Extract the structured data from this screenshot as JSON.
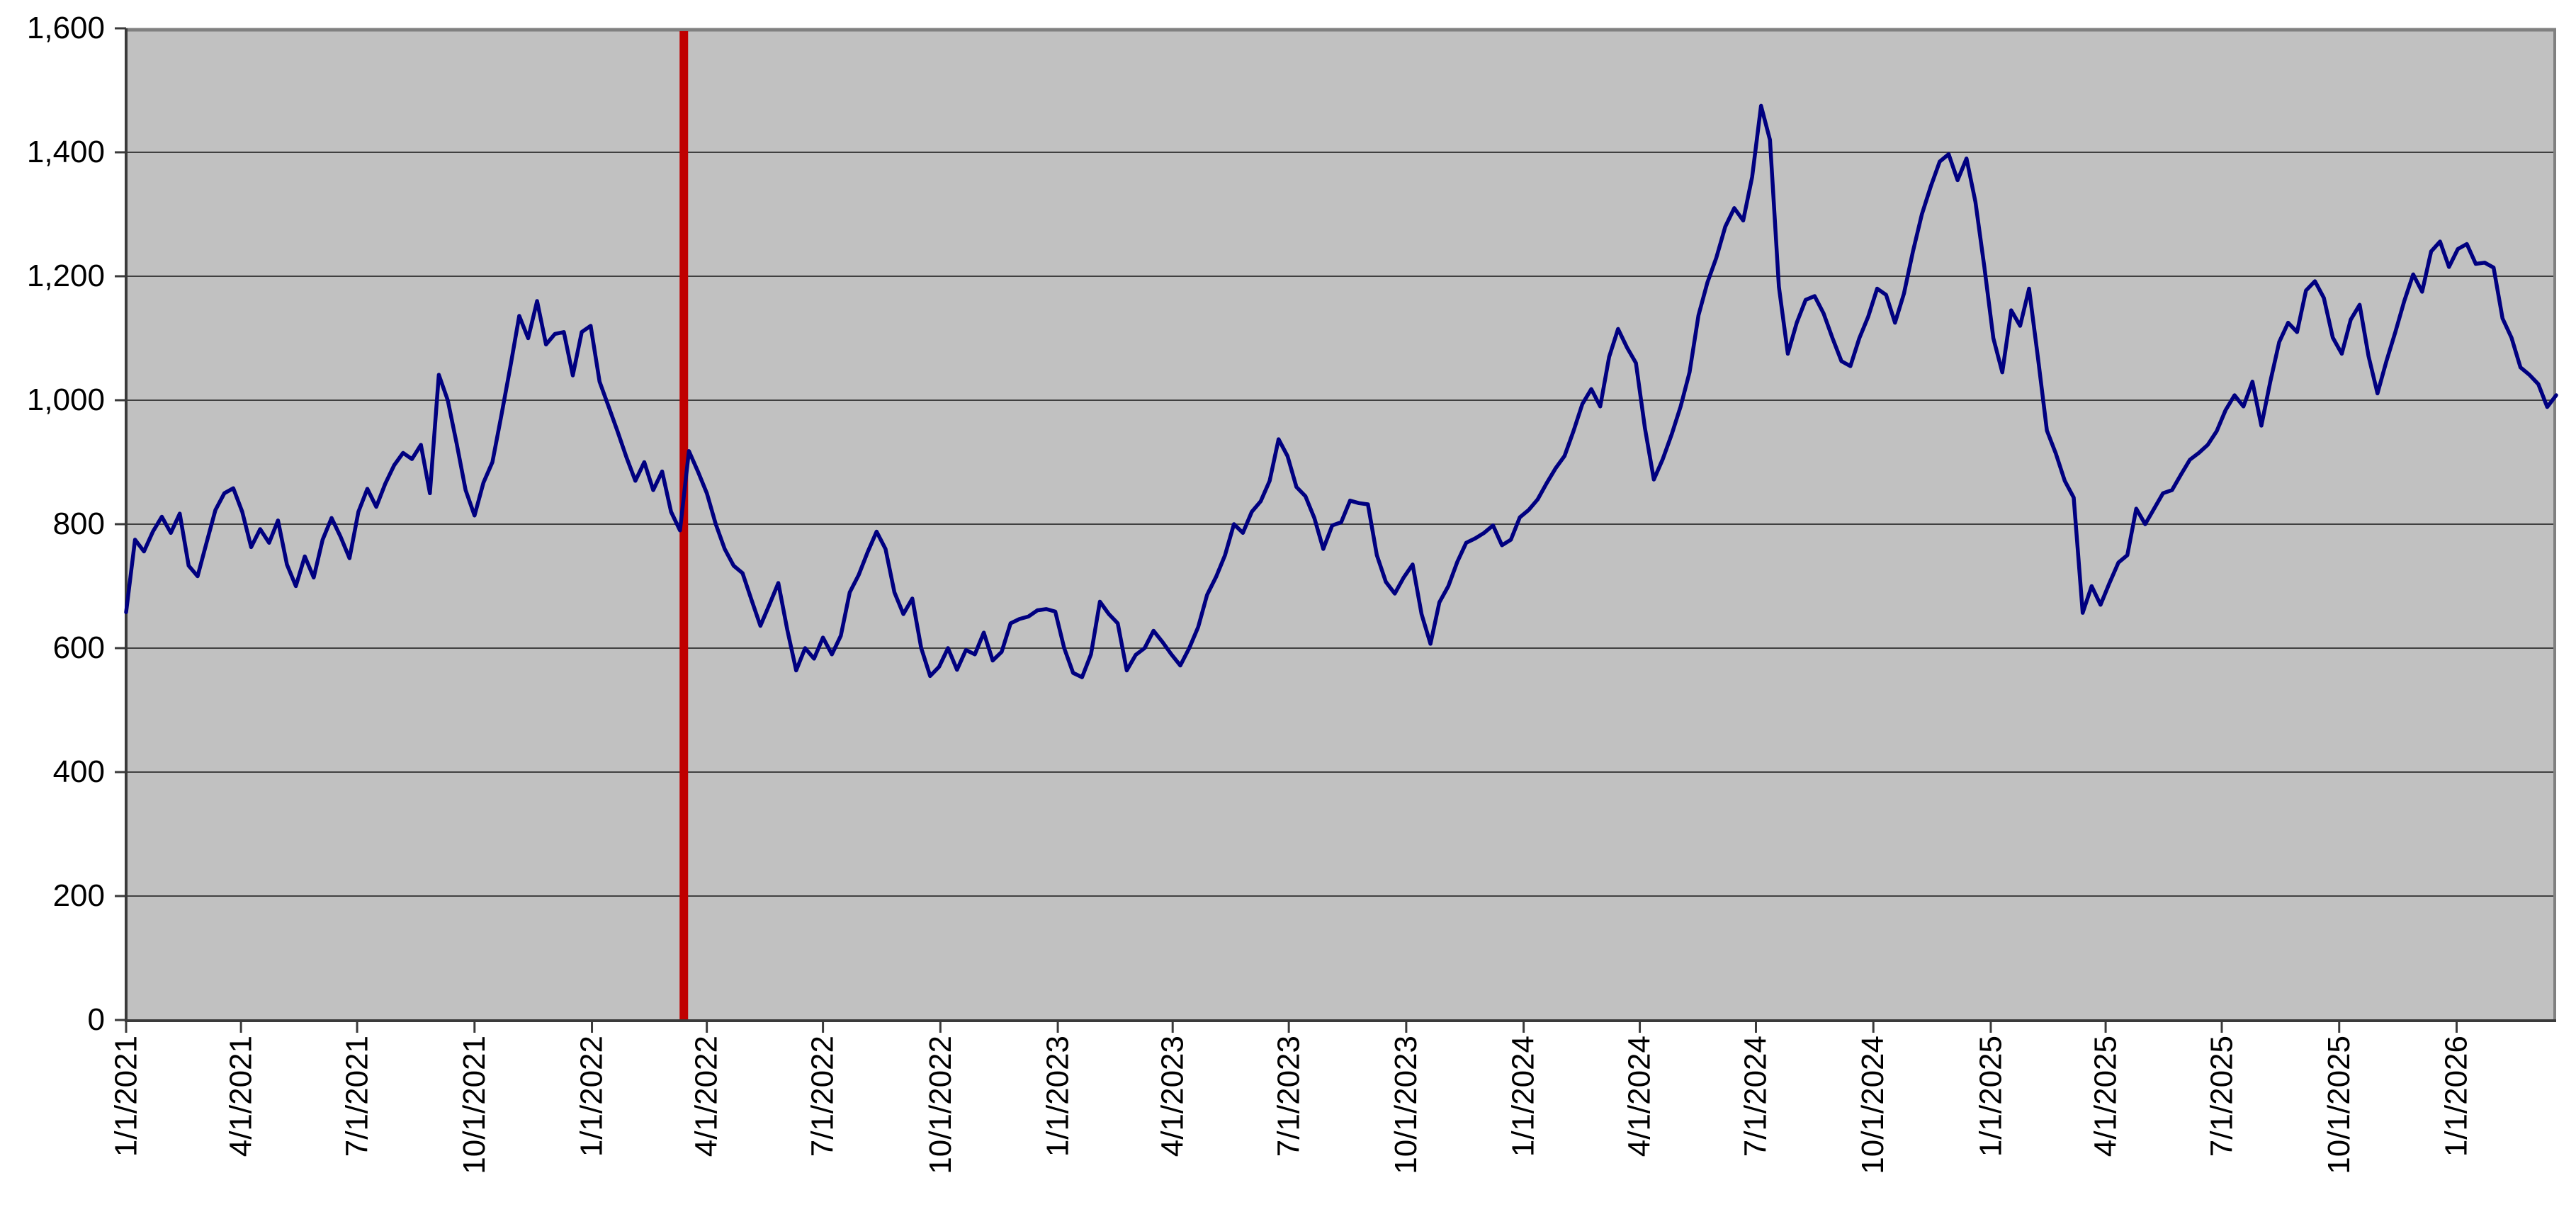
{
  "chart_data": {
    "type": "line",
    "title": "",
    "legend": "none",
    "grid": true,
    "style": {
      "plot_bg": "#c1c1c1",
      "grid_color": "#404040",
      "border_color": "#808080",
      "axis_color": "#3a3a3a",
      "tick_color": "#3a3a3a",
      "page_bg": "#ffffff"
    },
    "x_axis": {
      "unit": "date",
      "min_day": 0,
      "max_day": 1904,
      "tick_days": [
        0,
        90,
        181,
        273,
        365,
        455,
        546,
        638,
        730,
        820,
        911,
        1003,
        1095,
        1186,
        1277,
        1369,
        1461,
        1551,
        1642,
        1734,
        1826
      ],
      "tick_labels": [
        "1/1/2021",
        "4/1/2021",
        "7/1/2021",
        "10/1/2021",
        "1/1/2022",
        "4/1/2022",
        "7/1/2022",
        "10/1/2022",
        "1/1/2023",
        "4/1/2023",
        "7/1/2023",
        "10/1/2023",
        "1/1/2024",
        "4/1/2024",
        "7/1/2024",
        "10/1/2024",
        "1/1/2025",
        "4/1/2025",
        "7/1/2025",
        "10/1/2025",
        "1/1/2026"
      ]
    },
    "y_axis": {
      "min": 0,
      "max": 1600,
      "tick_step": 200,
      "tick_labels": [
        "0",
        "200",
        "400",
        "600",
        "800",
        "1,000",
        "1,200",
        "1,400",
        "1,600"
      ]
    },
    "annotations": [
      {
        "type": "vline",
        "name": "event-marker",
        "day": 437,
        "color": "#c00000",
        "width": 12
      }
    ],
    "series": [
      {
        "name": "price",
        "color": "#000080",
        "line_width": 5.5,
        "start_day": 0,
        "step_days": 7,
        "values": [
          658,
          775,
          756,
          788,
          812,
          786,
          817,
          733,
          716,
          770,
          823,
          850,
          858,
          820,
          763,
          792,
          770,
          806,
          735,
          700,
          748,
          714,
          775,
          810,
          780,
          745,
          820,
          857,
          828,
          865,
          895,
          915,
          905,
          928,
          850,
          1041,
          1000,
          930,
          855,
          814,
          867,
          900,
          975,
          1053,
          1136,
          1100,
          1160,
          1090,
          1107,
          1110,
          1040,
          1110,
          1120,
          1030,
          990,
          950,
          908,
          870,
          900,
          855,
          885,
          820,
          790,
          918,
          885,
          850,
          800,
          760,
          733,
          721,
          678,
          636,
          670,
          705,
          630,
          564,
          600,
          583,
          617,
          590,
          620,
          690,
          718,
          755,
          788,
          760,
          690,
          655,
          680,
          600,
          555,
          570,
          600,
          565,
          597,
          590,
          625,
          580,
          594,
          640,
          647,
          651,
          661,
          663,
          659,
          600,
          560,
          553,
          590,
          675,
          655,
          640,
          564,
          589,
          600,
          628,
          610,
          590,
          572,
          600,
          634,
          686,
          715,
          750,
          800,
          786,
          820,
          837,
          870,
          937,
          910,
          860,
          845,
          810,
          760,
          798,
          803,
          838,
          834,
          832,
          750,
          707,
          688,
          714,
          735,
          655,
          607,
          674,
          700,
          739,
          770,
          777,
          786,
          798,
          766,
          775,
          811,
          823,
          840,
          866,
          890,
          910,
          950,
          994,
          1018,
          990,
          1070,
          1115,
          1085,
          1060,
          955,
          872,
          905,
          945,
          990,
          1045,
          1137,
          1190,
          1230,
          1280,
          1310,
          1290,
          1360,
          1475,
          1420,
          1183,
          1075,
          1125,
          1162,
          1168,
          1140,
          1100,
          1063,
          1055,
          1100,
          1135,
          1180,
          1170,
          1125,
          1172,
          1240,
          1300,
          1345,
          1385,
          1397,
          1355,
          1390,
          1320,
          1215,
          1100,
          1045,
          1145,
          1120,
          1180,
          1068,
          951,
          914,
          870,
          843,
          657,
          700,
          670,
          705,
          738,
          750,
          825,
          800,
          825,
          850,
          855,
          880,
          904,
          915,
          928,
          950,
          984,
          1008,
          990,
          1030,
          959,
          1030,
          1094,
          1125,
          1110,
          1177,
          1192,
          1165,
          1101,
          1075,
          1130,
          1154,
          1071,
          1011,
          1063,
          1110,
          1160,
          1203,
          1175,
          1240,
          1256,
          1215,
          1244,
          1252,
          1220,
          1222,
          1214,
          1132,
          1101,
          1053,
          1041,
          1026,
          989,
          1008
        ]
      }
    ]
  }
}
